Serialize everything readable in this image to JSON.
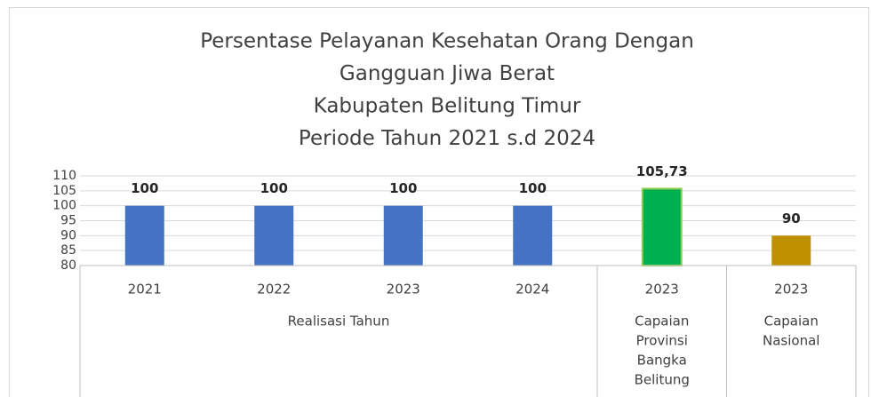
{
  "chart_data": {
    "type": "bar",
    "title": [
      "Persentase Pelayanan Kesehatan Orang Dengan",
      "Gangguan Jiwa Berat",
      "Kabupaten Belitung Timur",
      "Periode Tahun 2021 s.d 2024"
    ],
    "groups": [
      {
        "label": [
          "Realisasi Tahun"
        ],
        "categories": [
          "2021",
          "2022",
          "2023",
          "2024"
        ],
        "values": [
          100,
          100,
          100,
          100
        ],
        "value_labels": [
          "100",
          "100",
          "100",
          "100"
        ],
        "color": "#4472c4"
      },
      {
        "label": [
          "Capaian",
          "Provinsi",
          "Bangka",
          "Belitung"
        ],
        "categories": [
          "2023"
        ],
        "values": [
          105.73
        ],
        "value_labels": [
          "105,73"
        ],
        "color": "#00b050"
      },
      {
        "label": [
          "Capaian",
          "Nasional"
        ],
        "categories": [
          "2023"
        ],
        "values": [
          90
        ],
        "value_labels": [
          "90"
        ],
        "color": "#bf9000"
      }
    ],
    "ylim": [
      80,
      110
    ],
    "yticks": [
      80,
      85,
      90,
      95,
      100,
      105,
      110
    ],
    "grid": true
  }
}
